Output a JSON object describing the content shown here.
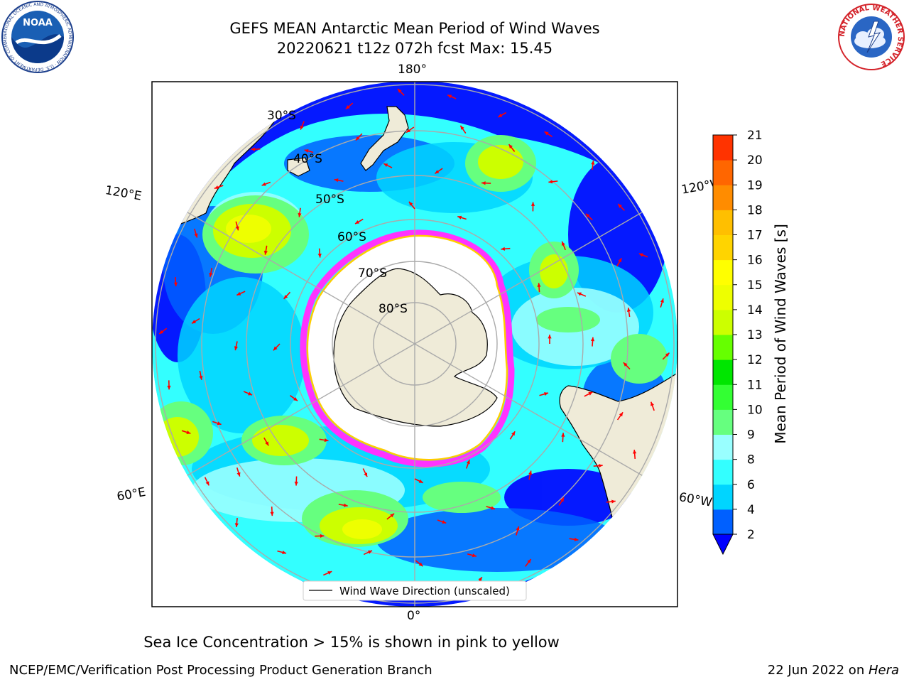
{
  "header": {
    "title_line1": "GEFS MEAN Antarctic Mean Period of Wind Waves",
    "title_line2": "20220621 t12z 072h fcst   Max: 15.45"
  },
  "logos": {
    "left": {
      "name": "NOAA",
      "ring_text": "NATIONAL OCEANIC AND ATMOSPHERIC ADMINISTRATION · U.S. DEPARTMENT OF COMMERCE ·"
    },
    "right": {
      "ring_text": "NATIONAL WEATHER SERVICE"
    }
  },
  "map": {
    "longitude_labels": {
      "top": "180°",
      "bottom": "0°",
      "upper_left": "120°E",
      "upper_right": "120°W",
      "lower_left": "60°E",
      "lower_right": "60°W"
    },
    "latitude_labels": [
      "30°S",
      "40°S",
      "50°S",
      "60°S",
      "70°S",
      "80°S"
    ],
    "legend_label": "Wind Wave Direction (unscaled)",
    "arrow_color": "#ff0000",
    "land_color": "#efebd8",
    "ice_edge_colors": [
      "#ff33ff",
      "#ffcc00"
    ]
  },
  "colorbar": {
    "label": "Mean Period of Wind Waves [s]",
    "ticks": [
      "2",
      "4",
      "6",
      "8",
      "9",
      "10",
      "11",
      "12",
      "13",
      "14",
      "15",
      "16",
      "17",
      "18",
      "19",
      "20",
      "21"
    ],
    "colors": [
      "#0060ff",
      "#00d5ff",
      "#33ffff",
      "#99ffff",
      "#66ff7f",
      "#33ff33",
      "#00e600",
      "#66ff00",
      "#ccff00",
      "#eeff00",
      "#ffff00",
      "#ffd400",
      "#ffbf00",
      "#ff8c00",
      "#ff6600",
      "#ff3300",
      "#ff0000"
    ],
    "underflow_color": "#0000ff"
  },
  "footer": {
    "note": "Sea Ice Concentration > 15% is shown in pink to yellow",
    "credit": "NCEP/EMC/Verification Post Processing Product Generation Branch",
    "date_prefix": "22 Jun 2022 on ",
    "date_host": "Hera"
  }
}
